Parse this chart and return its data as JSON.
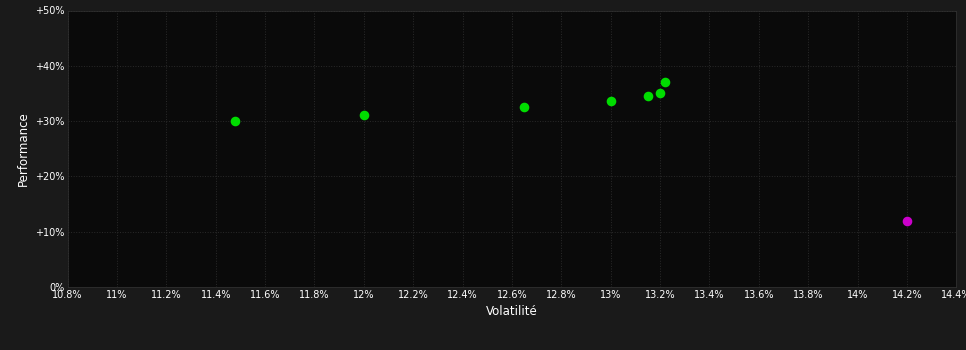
{
  "background_color": "#1a1a1a",
  "plot_bg_color": "#0a0a0a",
  "grid_color": "#2a2a2a",
  "text_color": "#ffffff",
  "xlabel": "Volatilité",
  "ylabel": "Performance",
  "xlim": [
    0.108,
    0.144
  ],
  "ylim": [
    0.0,
    0.5
  ],
  "xticks": [
    0.108,
    0.11,
    0.112,
    0.114,
    0.116,
    0.118,
    0.12,
    0.122,
    0.124,
    0.126,
    0.128,
    0.13,
    0.132,
    0.134,
    0.136,
    0.138,
    0.14,
    0.142,
    0.144
  ],
  "xtick_labels": [
    "10.8%",
    "11%",
    "11.2%",
    "11.4%",
    "11.6%",
    "11.8%",
    "12%",
    "12.2%",
    "12.4%",
    "12.6%",
    "12.8%",
    "13%",
    "13.2%",
    "13.4%",
    "13.6%",
    "13.8%",
    "14%",
    "14.2%",
    "14.4%"
  ],
  "yticks": [
    0.0,
    0.1,
    0.2,
    0.3,
    0.4,
    0.5
  ],
  "ytick_labels": [
    "0%",
    "+10%",
    "+20%",
    "+30%",
    "+40%",
    "+50%"
  ],
  "green_points": [
    [
      0.1148,
      0.3
    ],
    [
      0.12,
      0.311
    ],
    [
      0.1265,
      0.325
    ],
    [
      0.13,
      0.336
    ],
    [
      0.1315,
      0.345
    ],
    [
      0.132,
      0.35
    ],
    [
      0.1322,
      0.37
    ]
  ],
  "magenta_points": [
    [
      0.142,
      0.12
    ]
  ],
  "green_color": "#00dd00",
  "magenta_color": "#cc00cc",
  "marker_size": 35
}
